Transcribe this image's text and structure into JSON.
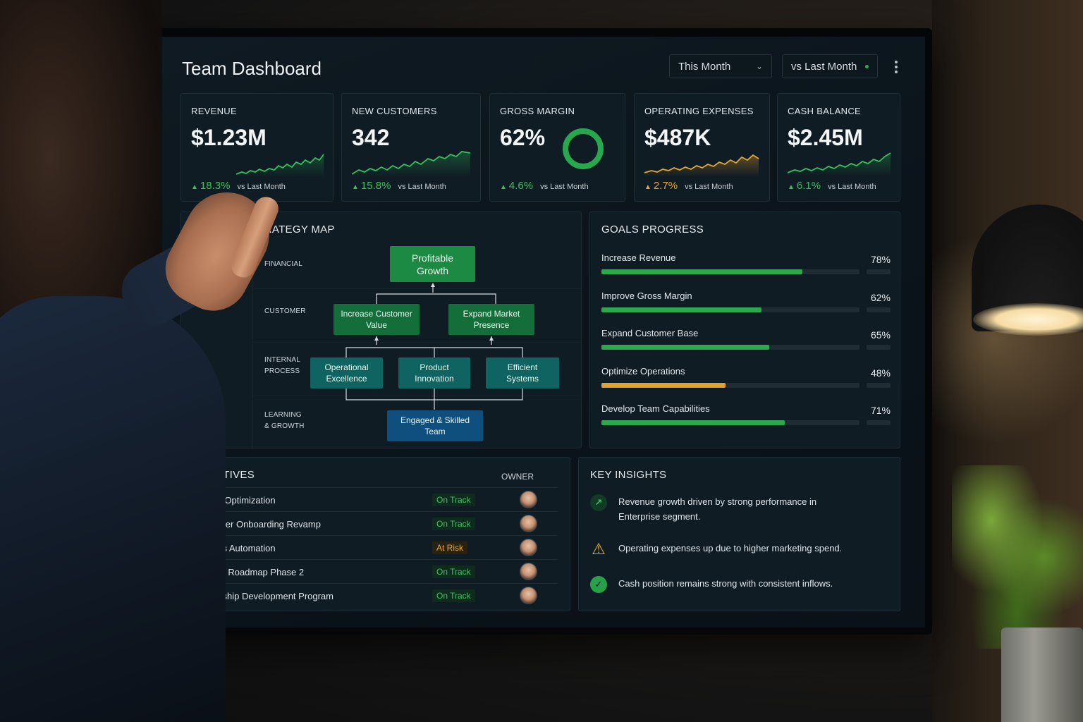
{
  "dashboard": {
    "title": "Team Dashboard",
    "period_select": "This Month",
    "compare_select": "vs Last Month",
    "menu_icon": "kebab-icon"
  },
  "kpis": [
    {
      "label": "REVENUE",
      "value": "$1.23M",
      "delta": "18.3%",
      "vs": "vs Last Month",
      "trend": "up",
      "color": "#35c15c"
    },
    {
      "label": "NEW CUSTOMERS",
      "value": "342",
      "delta": "15.8%",
      "vs": "vs Last Month",
      "trend": "up",
      "color": "#35c15c"
    },
    {
      "label": "GROSS MARGIN",
      "value": "62%",
      "delta": "4.6%",
      "vs": "vs Last Month",
      "trend": "up",
      "color": "#35c15c",
      "donut_fraction": 0.62
    },
    {
      "label": "OPERATING EXPENSES",
      "value": "$487K",
      "delta": "2.7%",
      "vs": "vs Last Month",
      "trend": "up",
      "color": "#e4a734"
    },
    {
      "label": "CASH BALANCE",
      "value": "$2.45M",
      "delta": "6.1%",
      "vs": "vs Last Month",
      "trend": "up",
      "color": "#35c15c"
    }
  ],
  "strategy_map": {
    "title": "STRATEGY MAP",
    "layers": {
      "financial": "FINANCIAL",
      "customer": "CUSTOMER",
      "internal_1": "INTERNAL",
      "internal_2": "PROCESS",
      "learning_1": "LEARNING",
      "learning_2": "& GROWTH"
    },
    "nodes": {
      "profitable_growth": [
        "Profitable",
        "Growth"
      ],
      "increase_customer_value": [
        "Increase Customer",
        "Value"
      ],
      "expand_market_presence": [
        "Expand Market",
        "Presence"
      ],
      "operational_excellence": [
        "Operational",
        "Excellence"
      ],
      "product_innovation": [
        "Product",
        "Innovation"
      ],
      "efficient_systems": [
        "Efficient",
        "Systems"
      ],
      "engaged_team": [
        "Engaged & Skilled",
        "Team"
      ]
    }
  },
  "goals": {
    "title": "GOALS PROGRESS",
    "items": [
      {
        "name": "Increase Revenue",
        "pct": "78%",
        "value": 0.78,
        "color": "#2ea84e"
      },
      {
        "name": "Improve Gross Margin",
        "pct": "62%",
        "value": 0.62,
        "color": "#2ea84e"
      },
      {
        "name": "Expand Customer Base",
        "pct": "65%",
        "value": 0.65,
        "color": "#2ea84e"
      },
      {
        "name": "Optimize Operations",
        "pct": "48%",
        "value": 0.48,
        "color": "#e0a232"
      },
      {
        "name": "Develop Team Capabilities",
        "pct": "71%",
        "value": 0.71,
        "color": "#2ea84e"
      }
    ]
  },
  "initiatives": {
    "title": "INITIATIVES",
    "owner_header": "OWNER",
    "rows": [
      {
        "name": "Pricing Optimization",
        "status": "On Track",
        "state": "ok"
      },
      {
        "name": "Customer Onboarding Revamp",
        "status": "On Track",
        "state": "ok"
      },
      {
        "name": "Process Automation",
        "status": "At Risk",
        "state": "risk"
      },
      {
        "name": "Product Roadmap Phase 2",
        "status": "On Track",
        "state": "ok"
      },
      {
        "name": "Leadership Development Program",
        "status": "On Track",
        "state": "ok"
      }
    ]
  },
  "insights": {
    "title": "KEY INSIGHTS",
    "items": [
      {
        "icon": "trend-up-icon",
        "line1": "Revenue growth driven by strong performance in",
        "line2": "Enterprise segment."
      },
      {
        "icon": "warning-icon",
        "line1": "Operating expenses up due to higher marketing spend.",
        "line2": ""
      },
      {
        "icon": "check-circle-icon",
        "line1": "Cash position remains strong with consistent inflows.",
        "line2": ""
      }
    ]
  },
  "colors": {
    "accent_green": "#35c15c",
    "accent_amber": "#e4a734",
    "panel_bg": "#0f1c24"
  }
}
